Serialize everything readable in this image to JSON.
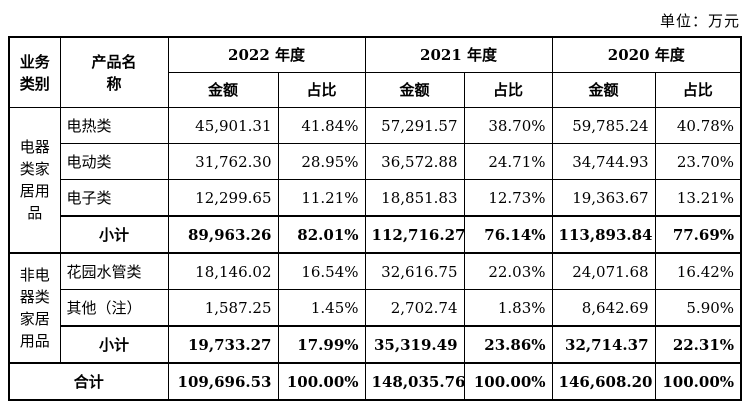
{
  "unit_label": "单位：万元",
  "header": {
    "col_category": "业务类别",
    "col_product": "产品名称",
    "years": [
      "2022 年度",
      "2021 年度",
      "2020 年度"
    ],
    "amount_label": "金额",
    "ratio_label": "占比"
  },
  "segments": [
    {
      "name": "电器类家居用品",
      "rows": [
        {
          "product": "电热类",
          "values": [
            "45,901.31",
            "41.84%",
            "57,291.57",
            "38.70%",
            "59,785.24",
            "40.78%"
          ]
        },
        {
          "product": "电动类",
          "values": [
            "31,762.30",
            "28.95%",
            "36,572.88",
            "24.71%",
            "34,744.93",
            "23.70%"
          ]
        },
        {
          "product": "电子类",
          "values": [
            "12,299.65",
            "11.21%",
            "18,851.83",
            "12.73%",
            "19,363.67",
            "13.21%"
          ]
        }
      ],
      "subtotal": {
        "label": "小计",
        "values": [
          "89,963.26",
          "82.01%",
          "112,716.27",
          "76.14%",
          "113,893.84",
          "77.69%"
        ]
      }
    },
    {
      "name": "非电器类家居用品",
      "rows": [
        {
          "product": "花园水管类",
          "values": [
            "18,146.02",
            "16.54%",
            "32,616.75",
            "22.03%",
            "24,071.68",
            "16.42%"
          ]
        },
        {
          "product": "其他（注）",
          "values": [
            "1,587.25",
            "1.45%",
            "2,702.74",
            "1.83%",
            "8,642.69",
            "5.90%"
          ]
        }
      ],
      "subtotal": {
        "label": "小计",
        "values": [
          "19,733.27",
          "17.99%",
          "35,319.49",
          "23.86%",
          "32,714.37",
          "22.31%"
        ]
      }
    }
  ],
  "total": {
    "label": "合计",
    "values": [
      "109,696.53",
      "100.00%",
      "148,035.76",
      "100.00%",
      "146,608.20",
      "100.00%"
    ]
  }
}
